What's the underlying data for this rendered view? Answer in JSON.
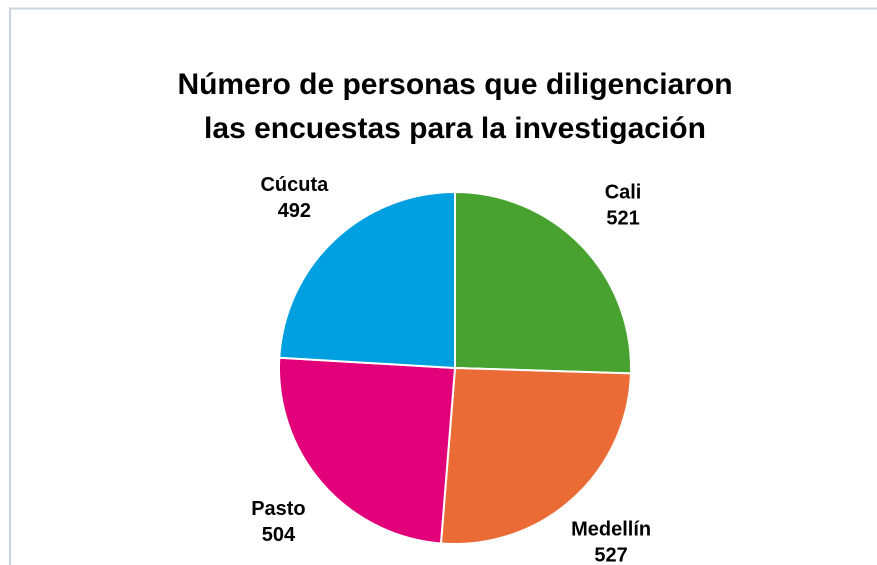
{
  "chart_data": {
    "type": "pie",
    "title": [
      "Número de personas que diligenciaron",
      "las encuestas  para la investigación"
    ],
    "categories": [
      "Cali",
      "Medellín",
      "Pasto",
      "Cúcuta"
    ],
    "values": [
      521,
      527,
      504,
      492
    ],
    "colors": [
      "#47a22f",
      "#ea6b35",
      "#e2007a",
      "#009fe0"
    ]
  }
}
